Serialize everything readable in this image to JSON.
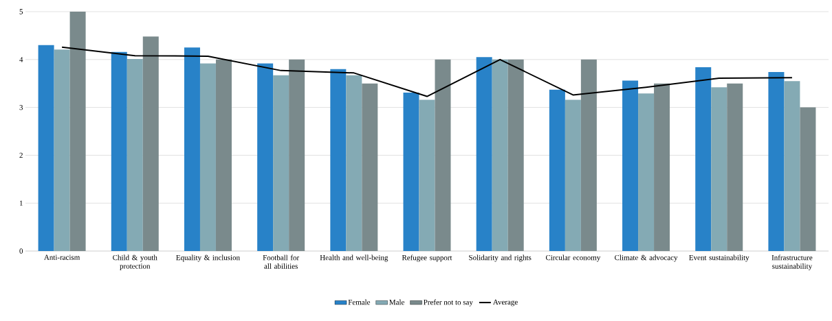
{
  "chart_data": {
    "type": "bar",
    "categories": [
      "Anti-racism",
      "Child & youth protection",
      "Equality & inclusion",
      "Football for all abilities",
      "Health and well-being",
      "Refugee support",
      "Solidarity and rights",
      "Circular economy",
      "Climate & advocacy",
      "Event sustainability",
      "Infrastructure sustainability"
    ],
    "series": [
      {
        "name": "Female",
        "color": "#2882c8",
        "values": [
          4.3,
          4.16,
          4.25,
          3.92,
          3.8,
          3.31,
          4.05,
          3.37,
          3.56,
          3.84,
          3.74
        ]
      },
      {
        "name": "Male",
        "color": "#84aab4",
        "values": [
          4.21,
          4.01,
          3.92,
          3.67,
          3.67,
          3.16,
          4.0,
          3.16,
          3.29,
          3.42,
          3.55
        ]
      },
      {
        "name": "Prefer not to say",
        "color": "#7a8a8c",
        "values": [
          5.0,
          4.48,
          4.0,
          4.0,
          3.5,
          4.0,
          4.0,
          4.0,
          3.5,
          3.5,
          3.0
        ]
      },
      {
        "name": "Average",
        "color": "#000000",
        "type": "line",
        "values": [
          4.26,
          4.08,
          4.07,
          3.77,
          3.72,
          3.23,
          4.0,
          3.26,
          3.42,
          3.61,
          3.62
        ]
      }
    ],
    "ylim": [
      0,
      5
    ],
    "yticks": [
      0,
      1,
      2,
      3,
      4,
      5
    ],
    "grid": "y",
    "legend": "bottom"
  }
}
